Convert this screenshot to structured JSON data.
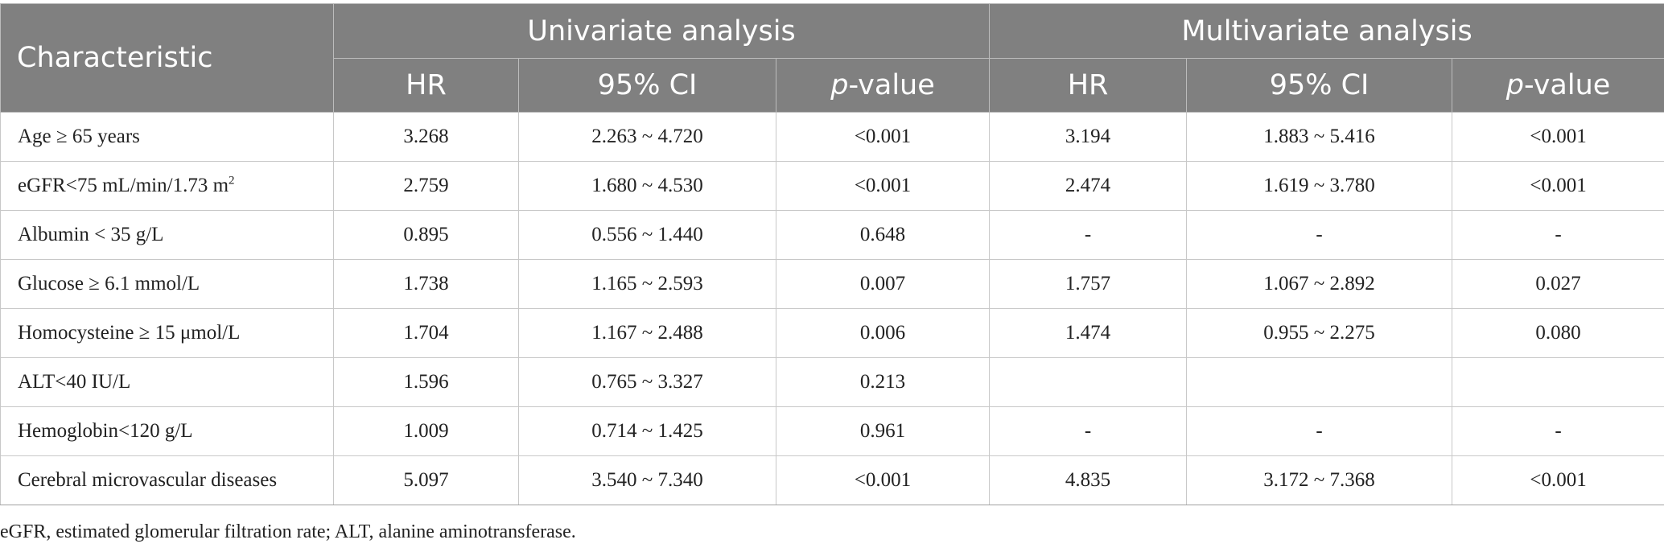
{
  "header": {
    "characteristic": "Characteristic",
    "univariate": "Univariate analysis",
    "multivariate": "Multivariate analysis",
    "hr": "HR",
    "ci": "95% CI",
    "p_italic": "p",
    "p_rest": "-value"
  },
  "rows": [
    {
      "label": "Age ≥ 65 years",
      "u_hr": "3.268",
      "u_ci": "2.263 ~ 4.720",
      "u_p": "<0.001",
      "m_hr": "3.194",
      "m_ci": "1.883 ~ 5.416",
      "m_p": "<0.001"
    },
    {
      "label": "eGFR<75 mL/min/1.73 m",
      "label_sup": "2",
      "u_hr": "2.759",
      "u_ci": "1.680 ~ 4.530",
      "u_p": "<0.001",
      "m_hr": "2.474",
      "m_ci": "1.619 ~ 3.780",
      "m_p": "<0.001"
    },
    {
      "label": "Albumin < 35 g/L",
      "u_hr": "0.895",
      "u_ci": "0.556 ~ 1.440",
      "u_p": "0.648",
      "m_hr": "-",
      "m_ci": "-",
      "m_p": "-"
    },
    {
      "label": "Glucose ≥ 6.1 mmol/L",
      "u_hr": "1.738",
      "u_ci": "1.165 ~ 2.593",
      "u_p": "0.007",
      "m_hr": "1.757",
      "m_ci": "1.067 ~ 2.892",
      "m_p": "0.027"
    },
    {
      "label": "Homocysteine ≥ 15 μmol/L",
      "u_hr": "1.704",
      "u_ci": "1.167 ~ 2.488",
      "u_p": "0.006",
      "m_hr": "1.474",
      "m_ci": "0.955 ~ 2.275",
      "m_p": "0.080"
    },
    {
      "label": "ALT<40 IU/L",
      "u_hr": "1.596",
      "u_ci": "0.765 ~ 3.327",
      "u_p": "0.213",
      "m_hr": "",
      "m_ci": "",
      "m_p": ""
    },
    {
      "label": "Hemoglobin<120 g/L",
      "u_hr": "1.009",
      "u_ci": "0.714 ~ 1.425",
      "u_p": "0.961",
      "m_hr": "-",
      "m_ci": "-",
      "m_p": "-"
    },
    {
      "label": "Cerebral microvascular diseases",
      "u_hr": "5.097",
      "u_ci": "3.540 ~ 7.340",
      "u_p": "<0.001",
      "m_hr": "4.835",
      "m_ci": "3.172 ~ 7.368",
      "m_p": "<0.001"
    }
  ],
  "footnote": "eGFR, estimated glomerular filtration rate; ALT, alanine aminotransferase."
}
